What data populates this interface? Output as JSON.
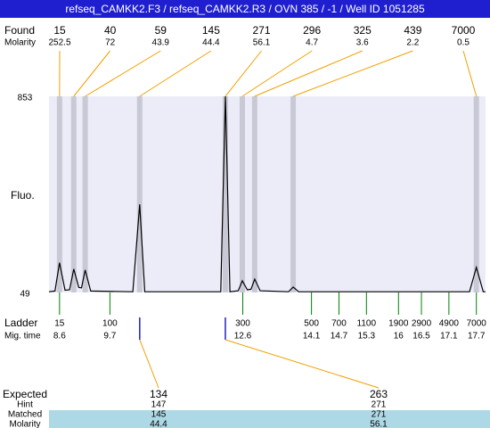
{
  "header": {
    "title": "refseq_CAMKK2.F3 / refseq_CAMKK2.R3 / OVN 385 / -1 / Well ID 1051285"
  },
  "chart_data": {
    "type": "line",
    "y_label": "Fluo.",
    "ylim": [
      49,
      853
    ],
    "yticks": [
      49,
      853
    ],
    "xlim": [
      8.37,
      17.9
    ],
    "color": "#000000",
    "x": [
      8.37,
      8.5,
      8.6,
      8.72,
      8.82,
      8.91,
      9.02,
      9.08,
      9.16,
      9.28,
      10.2,
      10.35,
      10.46,
      12.12,
      12.22,
      12.32,
      12.5,
      12.59,
      12.7,
      12.78,
      12.86,
      12.98,
      13.6,
      13.7,
      13.82,
      17.55,
      17.7,
      17.85,
      17.9
    ],
    "values": [
      52,
      55,
      171,
      58,
      60,
      145,
      70,
      68,
      141,
      55,
      52,
      410,
      52,
      52,
      853,
      52,
      56,
      97,
      60,
      62,
      104,
      56,
      52,
      71,
      52,
      52,
      152,
      52,
      52
    ],
    "found": {
      "label": "Found",
      "sublabel": "Molarity",
      "sizes": [
        15,
        40,
        59,
        145,
        271,
        296,
        325,
        439,
        7000
      ],
      "molarity": [
        252.5,
        72,
        43.9,
        44.4,
        56.1,
        4.7,
        3.6,
        2.2,
        0.5
      ],
      "times": [
        8.6,
        8.91,
        9.16,
        10.35,
        12.22,
        12.59,
        12.86,
        13.7,
        17.7
      ]
    },
    "ladder": {
      "label": "Ladder",
      "sublabel": "Mig. time",
      "sizes": [
        15,
        100,
        300,
        500,
        700,
        1100,
        1900,
        2900,
        4900,
        7000
      ],
      "times": [
        8.6,
        9.7,
        12.6,
        14.1,
        14.7,
        15.3,
        16,
        16.5,
        17.1,
        17.7
      ]
    },
    "expected": {
      "labels": [
        "Expected",
        "Hint",
        "Matched",
        "Molarity"
      ],
      "columns": [
        {
          "expected": 134,
          "hint": 147,
          "matched": 145,
          "molarity": 44.4
        },
        {
          "expected": 263,
          "hint": 271,
          "matched": 271,
          "molarity": 56.1
        }
      ]
    }
  }
}
